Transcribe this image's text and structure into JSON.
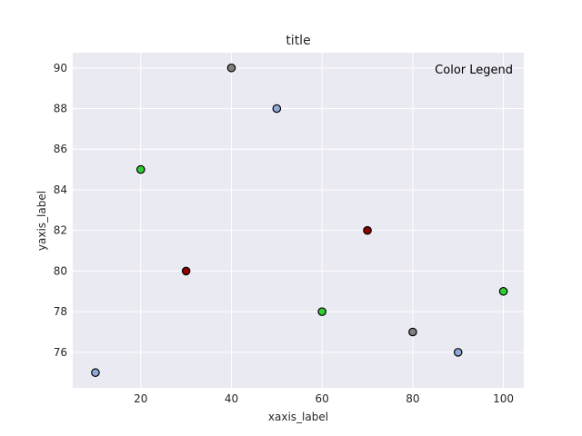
{
  "chart_data": {
    "type": "scatter",
    "title": "title",
    "xlabel": "xaxis_label",
    "ylabel": "yaxis_label",
    "xlim": [
      5,
      104.5
    ],
    "ylim": [
      74.25,
      90.75
    ],
    "xticks": [
      "20",
      "40",
      "60",
      "80",
      "100"
    ],
    "yticks": [
      "76",
      "78",
      "80",
      "82",
      "84",
      "86",
      "88",
      "90"
    ],
    "grid": true,
    "legend_title": "Color Legend",
    "legend_placement": "top-right",
    "points": [
      {
        "x": 10,
        "y": 75,
        "color": "#8fa9d6"
      },
      {
        "x": 20,
        "y": 85,
        "color": "#32cd32"
      },
      {
        "x": 30,
        "y": 80,
        "color": "#8b0000"
      },
      {
        "x": 40,
        "y": 90,
        "color": "#808080"
      },
      {
        "x": 50,
        "y": 88,
        "color": "#8fa9d6"
      },
      {
        "x": 60,
        "y": 78,
        "color": "#32cd32"
      },
      {
        "x": 70,
        "y": 82,
        "color": "#8b0000"
      },
      {
        "x": 80,
        "y": 77,
        "color": "#808080"
      },
      {
        "x": 90,
        "y": 76,
        "color": "#8fa9d6"
      },
      {
        "x": 100,
        "y": 79,
        "color": "#32cd32"
      }
    ]
  }
}
